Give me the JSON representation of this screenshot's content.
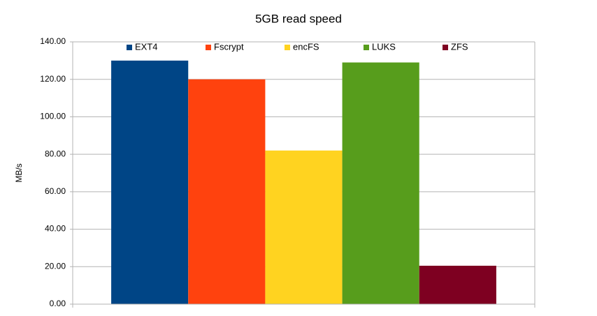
{
  "chart_data": {
    "type": "bar",
    "title": "5GB read speed",
    "y_label": "MB/s",
    "categories": [
      null
    ],
    "series": [
      {
        "name": "EXT4",
        "color": "#004586",
        "values": [
          130
        ]
      },
      {
        "name": "Fscrypt",
        "color": "#ff420e",
        "values": [
          120
        ]
      },
      {
        "name": "encFS",
        "color": "#ffd320",
        "values": [
          82
        ]
      },
      {
        "name": "LUKS",
        "color": "#579d1c",
        "values": [
          129
        ]
      },
      {
        "name": "ZFS",
        "color": "#7e0021",
        "values": [
          20.5
        ]
      }
    ],
    "ylim": [
      0,
      140
    ],
    "yticks": [
      {
        "value": 0,
        "label": "0.00"
      },
      {
        "value": 20,
        "label": "20.00"
      },
      {
        "value": 40,
        "label": "40.00"
      },
      {
        "value": 60,
        "label": "60.00"
      },
      {
        "value": 80,
        "label": "80.00"
      },
      {
        "value": 100,
        "label": "100.00"
      },
      {
        "value": 120,
        "label": "120.00"
      },
      {
        "value": 140,
        "label": "140.00"
      }
    ],
    "grid": true,
    "legend": "top"
  }
}
